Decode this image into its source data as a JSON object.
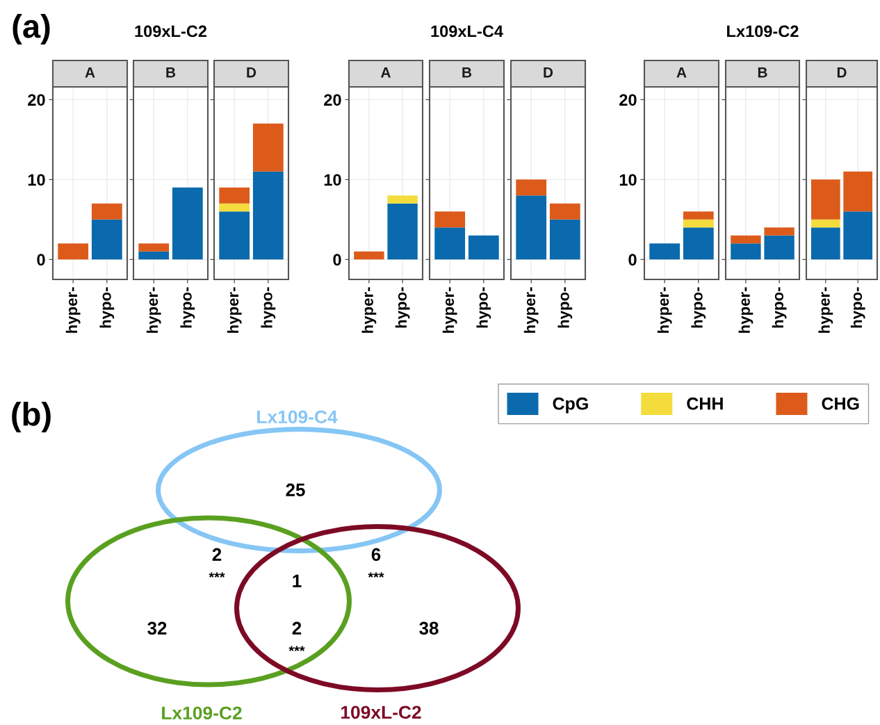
{
  "chart_data": [
    {
      "type": "bar",
      "stacked": true,
      "title": "A",
      "annotations": [
        "(a)"
      ],
      "categories": [
        "hyper-",
        "hypo-"
      ],
      "ylim": [
        -2.5,
        21.6
      ],
      "yticks": [
        0,
        10,
        20
      ],
      "grid": true,
      "legend": "bottom right",
      "series": [
        {
          "name": "CpG",
          "color": "#0a6aad",
          "values": [
            0,
            5
          ]
        },
        {
          "name": "CHH",
          "color": "#f3dc3c",
          "values": [
            0,
            0
          ]
        },
        {
          "name": "CHG",
          "color": "#dc5b1b",
          "values": [
            2,
            2
          ]
        }
      ]
    },
    {
      "type": "bar",
      "stacked": true,
      "title": "B",
      "subtitle": "109xL-C2",
      "categories": [
        "hyper-",
        "hypo-"
      ],
      "ylim": [
        -2.5,
        21.6
      ],
      "yticks": [
        0,
        10,
        20
      ],
      "grid": true,
      "tick_labels": "x",
      "series": [
        {
          "color": "#0a6aad",
          "values": [
            1,
            9
          ]
        },
        {
          "color": "#f3dc3c",
          "values": [
            0,
            0
          ]
        },
        {
          "color": "#dc5b1b",
          "values": [
            1,
            0
          ]
        }
      ]
    },
    {
      "type": "bar",
      "stacked": true,
      "title": "D",
      "categories": [
        "hyper-",
        "hypo-"
      ],
      "ylim": [
        -2.5,
        21.6
      ],
      "yticks": [
        0,
        10,
        20
      ],
      "grid": true,
      "tick_labels": "x",
      "series": [
        {
          "color": "#0a6aad",
          "values": [
            6,
            11
          ]
        },
        {
          "color": "#f3dc3c",
          "values": [
            1,
            0
          ]
        },
        {
          "color": "#dc5b1b",
          "values": [
            2,
            6
          ]
        }
      ]
    },
    {
      "type": "bar",
      "stacked": true,
      "title": "A",
      "categories": [
        "hyper-",
        "hypo-"
      ],
      "ylim": [
        -2.5,
        21.6
      ],
      "yticks": [
        0,
        10,
        20
      ],
      "grid": true,
      "series": [
        {
          "color": "#0a6aad",
          "values": [
            0,
            7
          ]
        },
        {
          "color": "#f3dc3c",
          "values": [
            0,
            1
          ]
        },
        {
          "color": "#dc5b1b",
          "values": [
            1,
            0
          ]
        }
      ]
    },
    {
      "type": "bar",
      "stacked": true,
      "title": "B",
      "subtitle": "109xL-C4",
      "categories": [
        "hyper-",
        "hypo-"
      ],
      "ylim": [
        -2.5,
        21.6
      ],
      "yticks": [
        0,
        10,
        20
      ],
      "grid": true,
      "tick_labels": "x",
      "series": [
        {
          "color": "#0a6aad",
          "values": [
            4,
            3
          ]
        },
        {
          "color": "#f3dc3c",
          "values": [
            0,
            0
          ]
        },
        {
          "color": "#dc5b1b",
          "values": [
            2,
            0
          ]
        }
      ]
    },
    {
      "type": "bar",
      "stacked": true,
      "title": "D",
      "categories": [
        "hyper-",
        "hypo-"
      ],
      "ylim": [
        -2.5,
        21.6
      ],
      "yticks": [
        0,
        10,
        20
      ],
      "grid": true,
      "tick_labels": "x",
      "series": [
        {
          "color": "#0a6aad",
          "values": [
            8,
            5
          ]
        },
        {
          "color": "#f3dc3c",
          "values": [
            0,
            0
          ]
        },
        {
          "color": "#dc5b1b",
          "values": [
            2,
            2
          ]
        }
      ]
    },
    {
      "type": "bar",
      "stacked": true,
      "title": "A",
      "categories": [
        "hyper-",
        "hypo-"
      ],
      "ylim": [
        -2.5,
        21.6
      ],
      "yticks": [
        0,
        10,
        20
      ],
      "grid": true,
      "series": [
        {
          "color": "#0a6aad",
          "values": [
            2,
            4
          ]
        },
        {
          "color": "#f3dc3c",
          "values": [
            0,
            1
          ]
        },
        {
          "color": "#dc5b1b",
          "values": [
            0,
            1
          ]
        }
      ]
    },
    {
      "type": "bar",
      "stacked": true,
      "title": "B",
      "subtitle": "Lx109-C2",
      "categories": [
        "hyper-",
        "hypo-"
      ],
      "ylim": [
        -2.5,
        21.6
      ],
      "yticks": [
        0,
        10,
        20
      ],
      "grid": true,
      "tick_labels": "x",
      "series": [
        {
          "color": "#0a6aad",
          "values": [
            2,
            3
          ]
        },
        {
          "color": "#f3dc3c",
          "values": [
            0,
            0
          ]
        },
        {
          "color": "#dc5b1b",
          "values": [
            1,
            1
          ]
        }
      ]
    },
    {
      "type": "bar",
      "stacked": true,
      "title": "D",
      "categories": [
        "hyper-",
        "hypo-"
      ],
      "ylim": [
        -2.5,
        21.6
      ],
      "yticks": [
        0,
        10,
        20
      ],
      "grid": true,
      "tick_labels": "x",
      "series": [
        {
          "color": "#0a6aad",
          "values": [
            4,
            6
          ]
        },
        {
          "color": "#f3dc3c",
          "values": [
            1,
            0
          ]
        },
        {
          "color": "#dc5b1b",
          "values": [
            5,
            5
          ]
        }
      ]
    },
    {
      "type": "other",
      "annotations": [
        "(b)",
        "25",
        "2",
        "***",
        "1",
        "6",
        "***",
        "32",
        "2",
        "***",
        "38"
      ],
      "series": [
        {
          "name": "Lx109-C4",
          "color": "#85c6f5"
        },
        {
          "name": "Lx109-C2",
          "color": "#5aa020"
        },
        {
          "name": "109xL-C2",
          "color": "#7d0a25"
        }
      ]
    }
  ]
}
